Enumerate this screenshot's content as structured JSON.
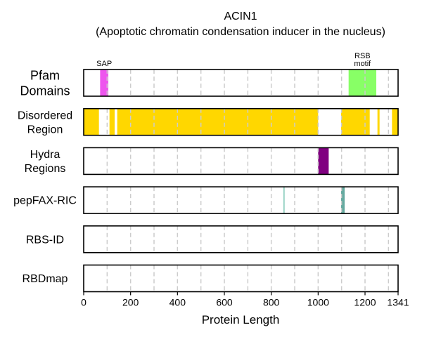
{
  "chart_data": {
    "type": "bar",
    "title": "ACIN1",
    "subtitle": "(Apoptotic chromatin condensation inducer in the nucleus)",
    "xlabel": "Protein Length",
    "ylabel": "",
    "xlim": [
      0,
      1341
    ],
    "x_ticks": [
      0,
      200,
      400,
      600,
      800,
      1000,
      1200,
      1341
    ],
    "gridlines_x": [
      100,
      200,
      300,
      400,
      500,
      600,
      700,
      800,
      900,
      1000,
      1100,
      1200,
      1300
    ],
    "tracks": [
      {
        "label": [
          "Pfam",
          "Domains"
        ],
        "segments": [
          {
            "start": 70,
            "end": 105,
            "color": "#ee55ee",
            "label": [
              "SAP"
            ]
          },
          {
            "start": 1130,
            "end": 1248,
            "color": "#88ff66",
            "label": [
              "RSB",
              "motif"
            ]
          }
        ]
      },
      {
        "label": [
          "Disordered",
          "Region"
        ],
        "segments": [
          {
            "start": 0,
            "end": 65,
            "color": "#ffd700"
          },
          {
            "start": 110,
            "end": 132,
            "color": "#ffd700"
          },
          {
            "start": 143,
            "end": 1000,
            "color": "#ffd700"
          },
          {
            "start": 1098,
            "end": 1220,
            "color": "#ffd700"
          },
          {
            "start": 1253,
            "end": 1262,
            "color": "#ffd700"
          },
          {
            "start": 1315,
            "end": 1341,
            "color": "#ffd700"
          }
        ]
      },
      {
        "label": [
          "Hydra",
          "Regions"
        ],
        "segments": [
          {
            "start": 1000,
            "end": 1045,
            "color": "#800080"
          }
        ]
      },
      {
        "label": [
          "pepFAX-RIC"
        ],
        "segments": [
          {
            "start": 852,
            "end": 857,
            "color": "#88ccbb"
          },
          {
            "start": 1098,
            "end": 1113,
            "color": "#66aaa0"
          }
        ]
      },
      {
        "label": [
          "RBS-ID"
        ],
        "segments": []
      },
      {
        "label": [
          "RBDmap"
        ],
        "segments": []
      }
    ]
  }
}
